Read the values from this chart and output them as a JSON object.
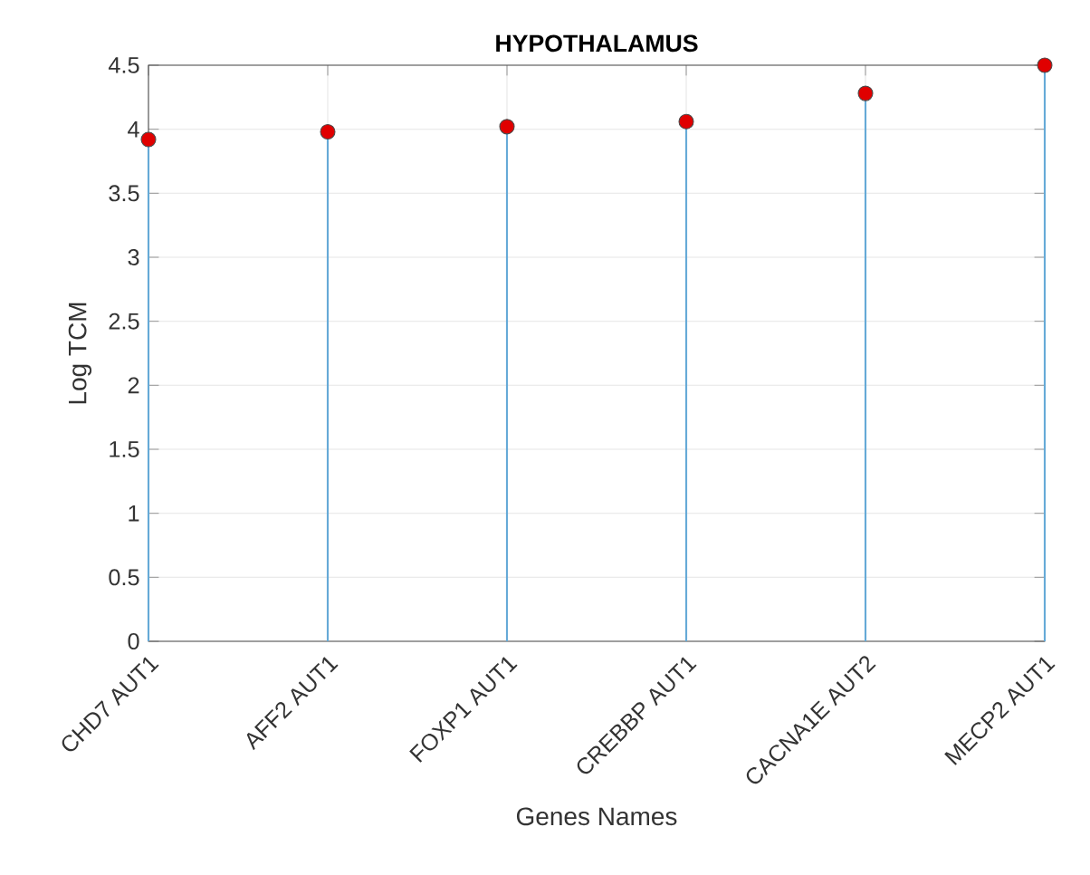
{
  "chart_data": {
    "type": "lollipop",
    "title": "HYPOTHALAMUS",
    "xlabel": "Genes Names",
    "ylabel": "Log TCM",
    "categories": [
      "CHD7 AUT1",
      "AFF2 AUT1",
      "FOXP1 AUT1",
      "CREBBP AUT1",
      "CACNA1E AUT2",
      "MECP2 AUT1"
    ],
    "values": [
      3.92,
      3.98,
      4.02,
      4.06,
      4.28,
      4.5
    ],
    "color": "#e00000",
    "marker": "circle",
    "grid": true,
    "ylim": [
      0,
      4.5
    ],
    "yticks": [
      0,
      0.5,
      1,
      1.5,
      2,
      2.5,
      3,
      3.5,
      4,
      4.5
    ]
  }
}
